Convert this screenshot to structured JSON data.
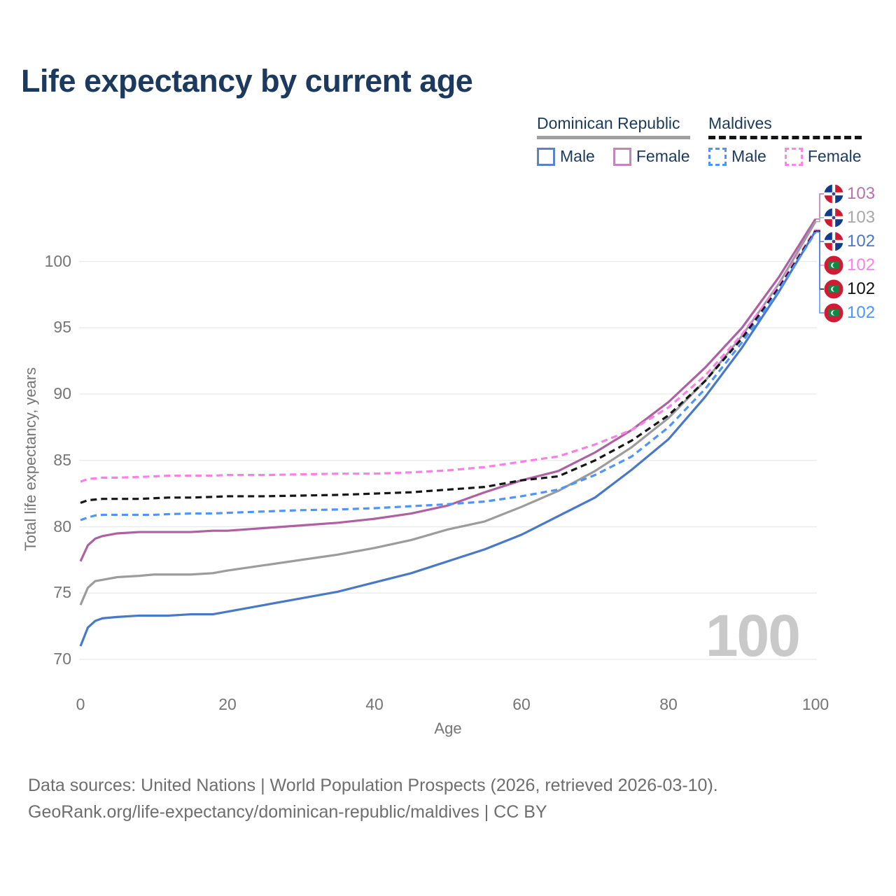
{
  "title": "Life expectancy by current age",
  "legend": {
    "groups": [
      {
        "country": "Dominican Republic",
        "line_style": "solid",
        "items": [
          {
            "label": "Male",
            "color": "#5b84c8",
            "dashed": false
          },
          {
            "label": "Female",
            "color": "#c286ba",
            "dashed": false
          }
        ]
      },
      {
        "country": "Maldives",
        "line_style": "dashed",
        "items": [
          {
            "label": "Male",
            "color": "#4d94ff",
            "dashed": true
          },
          {
            "label": "Female",
            "color": "#ff85e8",
            "dashed": true
          }
        ]
      }
    ]
  },
  "watermark": "100",
  "footer": {
    "line1": "Data sources: United Nations | World Population Prospects (2026, retrieved 2026-03-10).",
    "line2": "GeoRank.org/life-expectancy/dominican-republic/maldives | CC BY"
  },
  "chart_data": {
    "type": "line",
    "title": "Life expectancy by current age",
    "xlabel": "Age",
    "ylabel": "Total life expectancy, years",
    "xlim": [
      0,
      100
    ],
    "ylim": [
      70,
      104
    ],
    "xticks": [
      0,
      20,
      40,
      60,
      80,
      100
    ],
    "yticks": [
      70,
      75,
      80,
      85,
      90,
      95,
      100
    ],
    "grid": "horizontal-only",
    "legend_position": "top-right",
    "x": [
      0,
      1,
      2,
      3,
      5,
      8,
      10,
      12,
      15,
      18,
      20,
      25,
      30,
      35,
      40,
      45,
      50,
      55,
      60,
      65,
      70,
      75,
      80,
      85,
      90,
      95,
      100
    ],
    "series": [
      {
        "name": "Dominican Republic — Female",
        "country": "dominican-republic",
        "group": "Female",
        "color": "#ae60a3",
        "dash": null,
        "end_label": "103",
        "end_label_color": "#b573ab",
        "values": [
          77.4,
          78.6,
          79.1,
          79.3,
          79.5,
          79.6,
          79.6,
          79.6,
          79.6,
          79.7,
          79.7,
          79.9,
          80.1,
          80.3,
          80.6,
          81.0,
          81.6,
          82.6,
          83.5,
          84.2,
          85.6,
          87.3,
          89.4,
          92.0,
          95.0,
          98.8,
          103.2
        ]
      },
      {
        "name": "Dominican Republic — Both sexes",
        "country": "dominican-republic",
        "group": "Both",
        "color": "#9c9c9c",
        "dash": null,
        "end_label": "103",
        "end_label_color": "#a8a8a8",
        "values": [
          74.1,
          75.4,
          75.9,
          76.0,
          76.2,
          76.3,
          76.4,
          76.4,
          76.4,
          76.5,
          76.7,
          77.1,
          77.5,
          77.9,
          78.4,
          79.0,
          79.8,
          80.4,
          81.5,
          82.7,
          84.2,
          86.0,
          88.2,
          91.0,
          94.4,
          98.3,
          103.0
        ]
      },
      {
        "name": "Dominican Republic — Male",
        "country": "dominican-republic",
        "group": "Male",
        "color": "#4878c8",
        "dash": null,
        "end_label": "102",
        "end_label_color": "#4a77c9",
        "values": [
          71.0,
          72.4,
          72.9,
          73.1,
          73.2,
          73.3,
          73.3,
          73.3,
          73.4,
          73.4,
          73.6,
          74.1,
          74.6,
          75.1,
          75.8,
          76.5,
          77.4,
          78.3,
          79.4,
          80.8,
          82.2,
          84.3,
          86.6,
          89.8,
          93.5,
          97.7,
          102.3
        ]
      },
      {
        "name": "Maldives — Female",
        "country": "maldives",
        "group": "Female",
        "color": "#fc7ee6",
        "dash": "9 6",
        "end_label": "102",
        "end_label_color": "#fd80e9",
        "values": [
          83.4,
          83.6,
          83.65,
          83.7,
          83.7,
          83.75,
          83.8,
          83.85,
          83.85,
          83.85,
          83.9,
          83.9,
          83.95,
          84.0,
          84.0,
          84.1,
          84.25,
          84.5,
          84.9,
          85.3,
          86.2,
          87.3,
          89.0,
          91.4,
          94.5,
          98.2,
          102.4
        ]
      },
      {
        "name": "Maldives — Both sexes",
        "country": "maldives",
        "group": "Both",
        "color": "#161616",
        "dash": "9 6",
        "end_label": "102",
        "end_label_color": "#111111",
        "values": [
          81.8,
          82.0,
          82.05,
          82.1,
          82.1,
          82.1,
          82.15,
          82.2,
          82.2,
          82.25,
          82.3,
          82.3,
          82.35,
          82.4,
          82.5,
          82.6,
          82.8,
          83.0,
          83.5,
          83.8,
          85.0,
          86.5,
          88.4,
          91.0,
          94.2,
          98.0,
          102.3
        ]
      },
      {
        "name": "Maldives — Male",
        "country": "maldives",
        "group": "Male",
        "color": "#4d94ff",
        "dash": "9 6",
        "end_label": "102",
        "end_label_color": "#4d94ff",
        "values": [
          80.5,
          80.7,
          80.85,
          80.9,
          80.9,
          80.9,
          80.9,
          80.95,
          81.0,
          81.0,
          81.05,
          81.15,
          81.25,
          81.3,
          81.4,
          81.55,
          81.7,
          81.9,
          82.3,
          82.8,
          83.9,
          85.3,
          87.5,
          90.4,
          93.9,
          97.8,
          102.2
        ]
      }
    ]
  }
}
